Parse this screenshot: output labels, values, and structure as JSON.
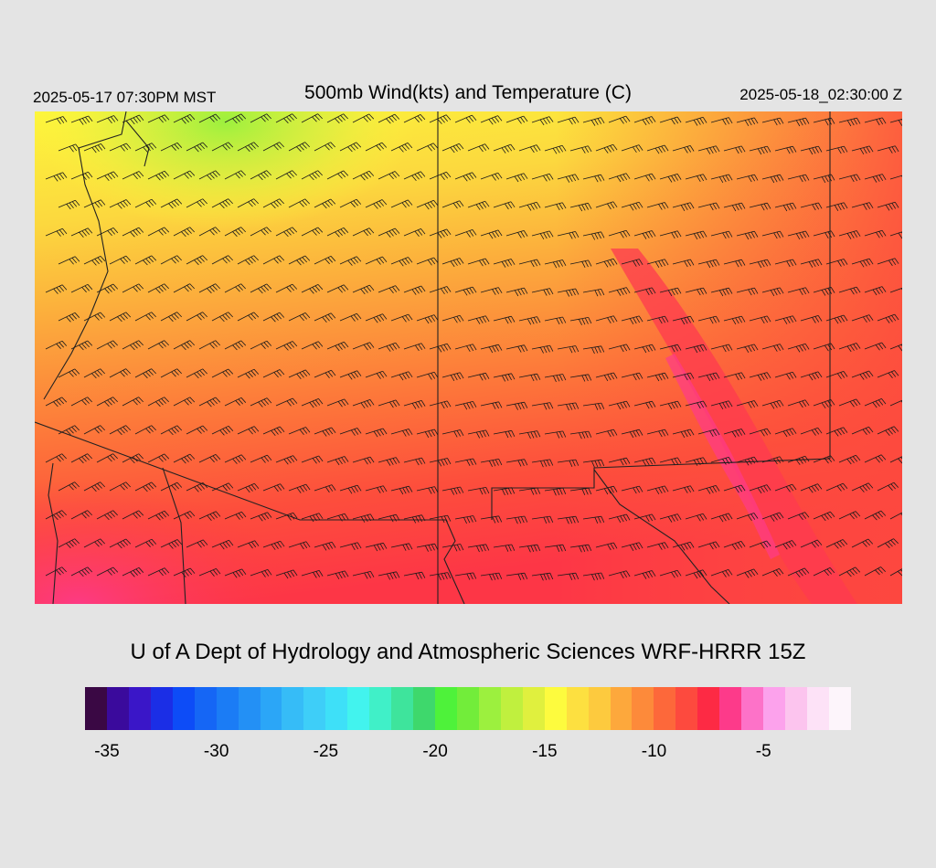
{
  "header": {
    "valid_time": "2025-05-17 07:30PM MST",
    "title": "500mb Wind(kts) and Temperature (C)",
    "init_time": "2025-05-18_02:30:00 Z"
  },
  "credit": "U of A Dept of Hydrology and Atmospheric Sciences WRF-HRRR 15Z",
  "colorbar": {
    "colors": [
      "#3a0844",
      "#3a0a9c",
      "#3a16c8",
      "#1b2ee6",
      "#0d4cf7",
      "#1566f5",
      "#1b7cf5",
      "#2390f5",
      "#2ba6f7",
      "#36bcf7",
      "#3ecef8",
      "#3ee0f8",
      "#42f3ee",
      "#40f0c8",
      "#3ee49c",
      "#3ed86c",
      "#4ef23a",
      "#72ed3a",
      "#9cf03e",
      "#c0f03e",
      "#e0f03e",
      "#fdfb3e",
      "#fde040",
      "#fdca3e",
      "#fda83c",
      "#fd8a3a",
      "#fd683a",
      "#fd4a3e",
      "#fd2a44",
      "#fd3a8a",
      "#fd72c8",
      "#fca2ec",
      "#fcc4ee",
      "#fde2f7",
      "#fdf5fb"
    ],
    "labels": [
      "-35",
      "-30",
      "-25",
      "-20",
      "-15",
      "-10",
      "-5"
    ],
    "label_values": [
      -35,
      -30,
      -25,
      -20,
      -15,
      -10,
      -5
    ],
    "min": -36,
    "max": -1
  },
  "map": {
    "field": "500mb temperature (C)",
    "range_min": -18,
    "range_max": -6
  }
}
